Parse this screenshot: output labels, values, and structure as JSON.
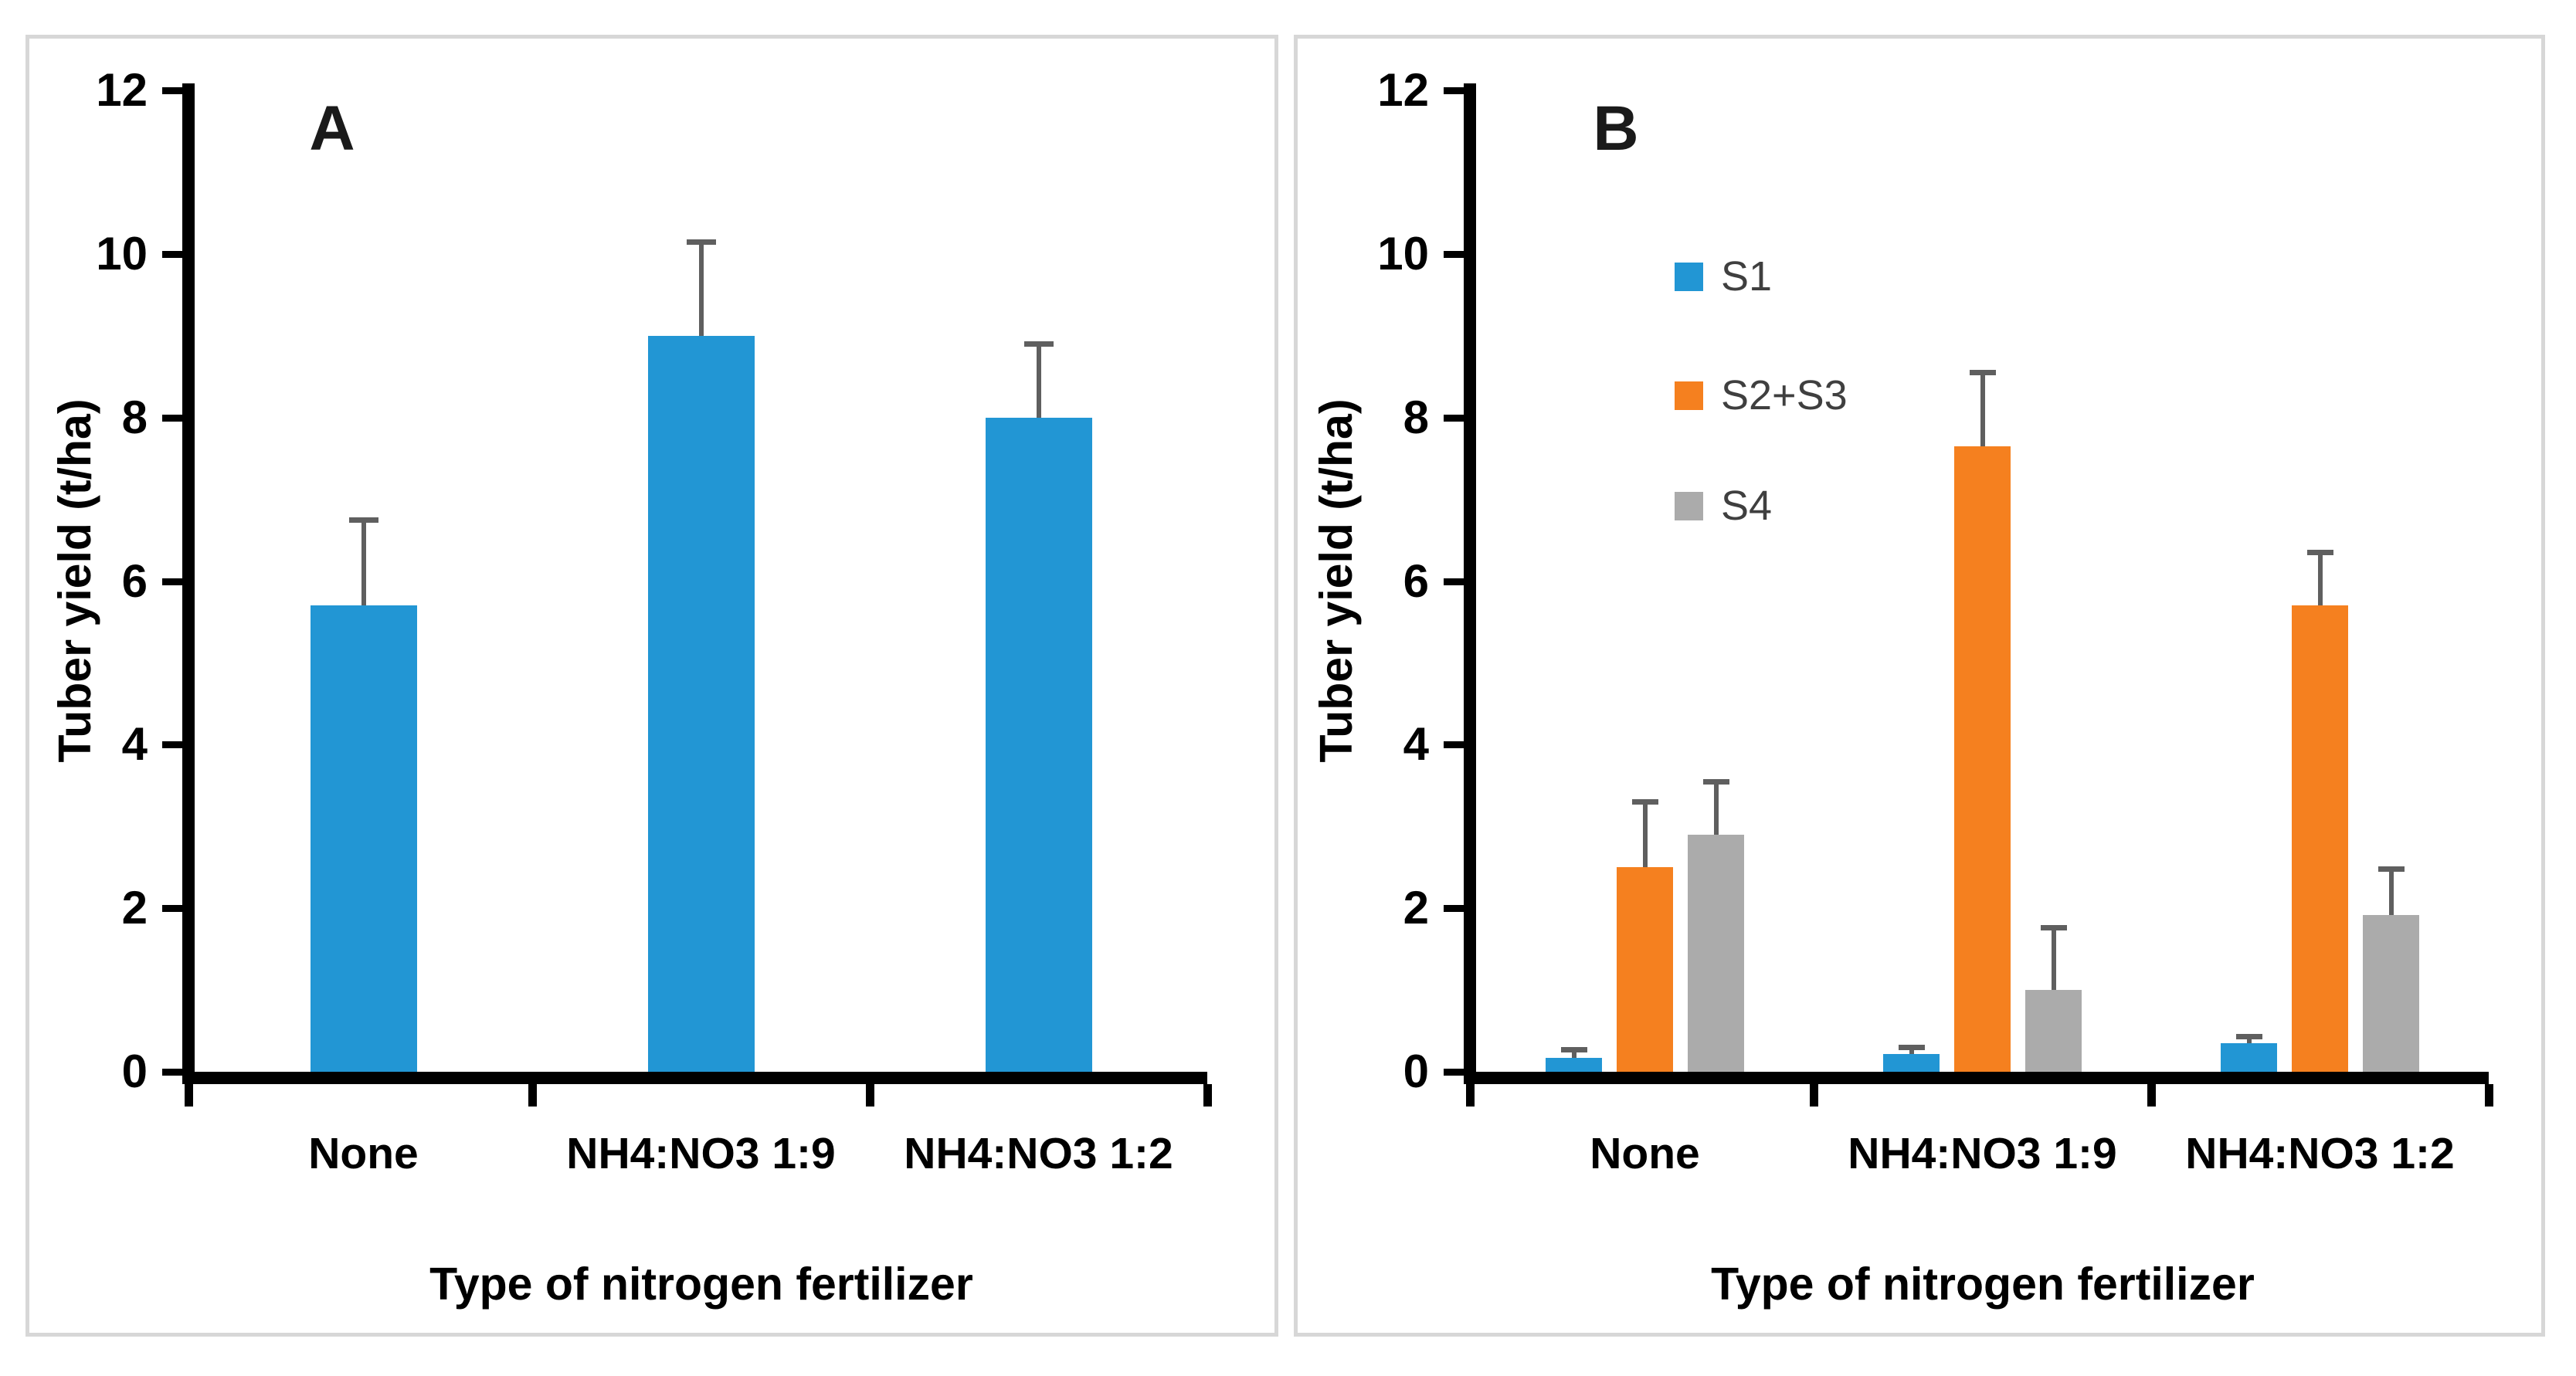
{
  "figure": {
    "background_color": "#ffffff",
    "panel_border_color": "#d7d7d7",
    "axis_color": "#000000",
    "error_bar_color": "#5f5f5f",
    "legend_text_color": "#3f3f3f"
  },
  "chart_data": [
    {
      "type": "bar",
      "title": "A",
      "categories": [
        "None",
        "NH4:NO3 1:9",
        "NH4:NO3 1:2"
      ],
      "series": [
        {
          "name": "Tuber yield",
          "color": "#2296d4",
          "values": [
            5.7,
            9.0,
            8.0
          ],
          "errors_up": [
            1.05,
            1.15,
            0.9
          ]
        }
      ],
      "xlabel": "Type of nitrogen fertilizer",
      "ylabel": "Tuber yield (t/ha)",
      "ylim": [
        0,
        12
      ],
      "yticks": [
        0,
        2,
        4,
        6,
        8,
        10,
        12
      ],
      "grid": false,
      "legend": false
    },
    {
      "type": "bar",
      "title": "B",
      "categories": [
        "None",
        "NH4:NO3 1:9",
        "NH4:NO3 1:2"
      ],
      "series": [
        {
          "name": "S1",
          "color": "#2296d4",
          "values": [
            0.17,
            0.22,
            0.35
          ],
          "errors_up": [
            0.1,
            0.08,
            0.08
          ]
        },
        {
          "name": "S2+S3",
          "color": "#f5801f",
          "values": [
            2.5,
            7.65,
            5.7
          ],
          "errors_up": [
            0.8,
            0.9,
            0.65
          ]
        },
        {
          "name": "S4",
          "color": "#ababab",
          "values": [
            2.9,
            1.0,
            1.92
          ],
          "errors_up": [
            0.65,
            0.77,
            0.56
          ]
        }
      ],
      "xlabel": "Type of nitrogen fertilizer",
      "ylabel": "Tuber yield (t/ha)",
      "ylim": [
        0,
        12
      ],
      "yticks": [
        0,
        2,
        4,
        6,
        8,
        10,
        12
      ],
      "grid": false,
      "legend": true,
      "legend_position": "inside-upper-left"
    }
  ]
}
